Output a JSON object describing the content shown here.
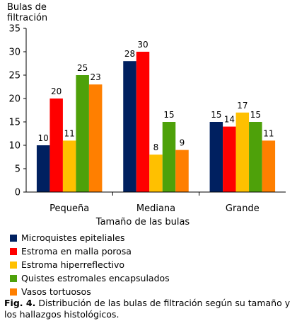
{
  "chart_data": {
    "type": "bar",
    "ylabel": "Bulas de\nfiltración",
    "xlabel": "Tamaño de las bulas",
    "categories": [
      "Pequeña",
      "Mediana",
      "Grande"
    ],
    "ylim": [
      0,
      35
    ],
    "yticks": [
      0,
      5,
      10,
      15,
      20,
      25,
      30,
      35
    ],
    "grid": false,
    "legend_position": "bottom",
    "series": [
      {
        "name": "Microquistes epiteliales",
        "color": "#002060",
        "values": [
          10,
          28,
          15
        ]
      },
      {
        "name": "Estroma en malla porosa",
        "color": "#ff0000",
        "values": [
          20,
          30,
          14
        ]
      },
      {
        "name": "Estroma hiperreflectivo",
        "color": "#ffc000",
        "values": [
          11,
          8,
          17
        ]
      },
      {
        "name": "Quistes estromales encapsulados",
        "color": "#4ea10a",
        "values": [
          25,
          15,
          15
        ]
      },
      {
        "name": "Vasos tortuosos",
        "color": "#ff7f00",
        "values": [
          23,
          9,
          11
        ]
      }
    ]
  },
  "caption": {
    "label": "Fig. 4.",
    "text": "Distribución de las bulas de filtración según su tamaño y los hallazgos histológicos."
  }
}
